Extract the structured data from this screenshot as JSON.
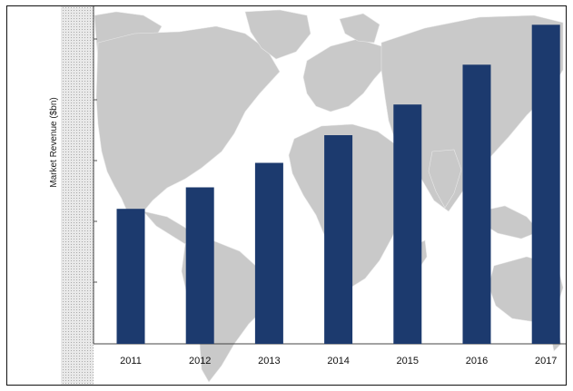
{
  "chart_data": {
    "type": "bar",
    "categories": [
      "2011",
      "2012",
      "2013",
      "2014",
      "2015",
      "2016",
      "2017"
    ],
    "values": [
      2.2,
      2.55,
      2.95,
      3.4,
      3.9,
      4.55,
      5.2
    ],
    "title": "",
    "xlabel": "",
    "ylabel": "Market Revenue ($bn)",
    "ylim": [
      0,
      5.5
    ],
    "grid": false,
    "legend": "none",
    "colors": {
      "bar": "#1c3a6e",
      "background_map": "#c8c8c8",
      "axis_band": "#e0e0e0"
    }
  }
}
